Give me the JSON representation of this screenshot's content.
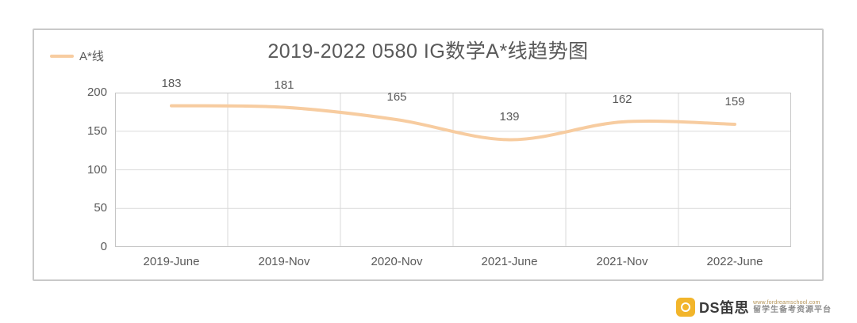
{
  "chart_data": {
    "type": "line",
    "categories": [
      "2019-June",
      "2019-Nov",
      "2020-Nov",
      "2021-June",
      "2021-Nov",
      "2022-June"
    ],
    "series": [
      {
        "name": "A*线",
        "values": [
          183,
          181,
          165,
          139,
          162,
          159
        ]
      }
    ],
    "title": "2019-2022 0580 IG数学A*线趋势图",
    "xlabel": "",
    "ylabel": "",
    "ylim": [
      0,
      200
    ],
    "yticks": [
      0,
      50,
      100,
      150,
      200
    ],
    "grid": true,
    "smooth": true,
    "data_labels": true,
    "legend_position": "top-left",
    "line_color": "#f7cca0"
  },
  "colors": {
    "text": "#595959",
    "gridline": "#dadada",
    "plot_border": "#c6c6c6",
    "brand_yellow": "#f2b52b"
  },
  "watermark": {
    "brand": "DS笛思",
    "url": "www.fordreamschool.com",
    "tagline": "留学生备考资源平台"
  }
}
